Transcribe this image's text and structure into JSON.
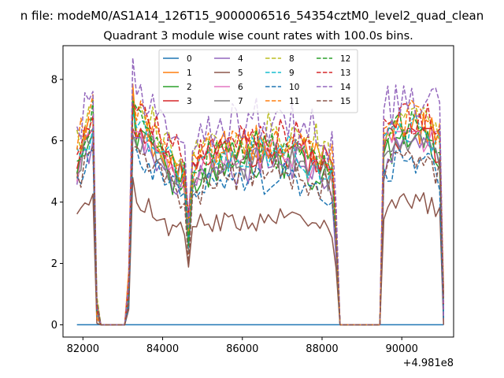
{
  "chart_data": {
    "type": "line",
    "suptitle": "n file: modeM0/AS1A14_126T15_9000006516_54354cztM0_level2_quad_clean",
    "title": "Quadrant 3 module wise count rates with 100.0s bins.",
    "xlabel": "",
    "ylabel": "",
    "x_offset_label": "+4.981e8",
    "xlim": [
      81500,
      91300
    ],
    "ylim": [
      -0.4,
      9.1
    ],
    "x_ticks": [
      82000,
      84000,
      86000,
      88000,
      90000
    ],
    "x_tick_labels": [
      "82000",
      "84000",
      "86000",
      "88000",
      "90000"
    ],
    "y_ticks": [
      0,
      2,
      4,
      6,
      8
    ],
    "y_tick_labels": [
      "0",
      "2",
      "4",
      "6",
      "8"
    ],
    "grid": false,
    "legend_placement": "upper-center",
    "x_start": 81850,
    "x_step": 100,
    "series": [
      {
        "name": "0",
        "color": "#1f77b4",
        "dash": "solid",
        "level": 0.0,
        "min": 0.0,
        "max": 0.0
      },
      {
        "name": "1",
        "color": "#ff7f0e",
        "dash": "solid",
        "level": 5.4,
        "min": 3.0,
        "max": 7.9
      },
      {
        "name": "2",
        "color": "#2ca02c",
        "dash": "solid",
        "level": 5.0,
        "min": 2.8,
        "max": 7.4
      },
      {
        "name": "3",
        "color": "#d62728",
        "dash": "solid",
        "level": 5.3,
        "min": 3.0,
        "max": 6.4
      },
      {
        "name": "4",
        "color": "#9467bd",
        "dash": "solid",
        "level": 4.9,
        "min": 3.0,
        "max": 6.1
      },
      {
        "name": "5",
        "color": "#8c564b",
        "dash": "solid",
        "level": 3.3,
        "min": 0.55,
        "max": 4.8
      },
      {
        "name": "6",
        "color": "#e377c2",
        "dash": "solid",
        "level": 5.2,
        "min": 3.0,
        "max": 6.3
      },
      {
        "name": "7",
        "color": "#7f7f7f",
        "dash": "solid",
        "level": 5.1,
        "min": 3.0,
        "max": 6.2
      },
      {
        "name": "8",
        "color": "#bcbd22",
        "dash": "dashed",
        "level": 5.8,
        "min": 3.2,
        "max": 7.1
      },
      {
        "name": "9",
        "color": "#17becf",
        "dash": "dashed",
        "level": 5.3,
        "min": 3.0,
        "max": 6.9
      },
      {
        "name": "10",
        "color": "#1f77b4",
        "dash": "dashed",
        "level": 4.5,
        "min": 2.9,
        "max": 5.7
      },
      {
        "name": "11",
        "color": "#ff7f0e",
        "dash": "dashed",
        "level": 5.6,
        "min": 3.0,
        "max": 7.5
      },
      {
        "name": "12",
        "color": "#2ca02c",
        "dash": "dashed",
        "level": 5.4,
        "min": 3.0,
        "max": 7.3
      },
      {
        "name": "13",
        "color": "#d62728",
        "dash": "dashed",
        "level": 5.7,
        "min": 3.0,
        "max": 7.2
      },
      {
        "name": "14",
        "color": "#9467bd",
        "dash": "dashed",
        "level": 6.2,
        "min": 3.3,
        "max": 8.7
      },
      {
        "name": "15",
        "color": "#8c564b",
        "dash": "dashed",
        "level": 4.6,
        "min": 3.0,
        "max": 5.8
      }
    ],
    "segments": [
      {
        "x_from": 81850,
        "x_to": 82250,
        "factor": 1.05
      },
      {
        "x_from": 82350,
        "x_to": 82350,
        "factor": 0.12
      },
      {
        "x_from": 82450,
        "x_to": 83050,
        "factor": 0.0
      },
      {
        "x_from": 83150,
        "x_to": 83150,
        "factor": 0.2
      },
      {
        "x_from": 83250,
        "x_to": 83250,
        "factor": 1.25
      },
      {
        "x_from": 83350,
        "x_to": 84550,
        "factor": 1.0
      },
      {
        "x_from": 84650,
        "x_to": 84650,
        "factor": 0.55
      },
      {
        "x_from": 84750,
        "x_to": 88250,
        "factor": 1.0
      },
      {
        "x_from": 88350,
        "x_to": 88350,
        "factor": 0.55
      },
      {
        "x_from": 88450,
        "x_to": 89450,
        "factor": 0.0
      },
      {
        "x_from": 89550,
        "x_to": 90950,
        "factor": 1.05
      },
      {
        "x_from": 91050,
        "x_to": 91050,
        "factor": 0.1
      }
    ]
  }
}
